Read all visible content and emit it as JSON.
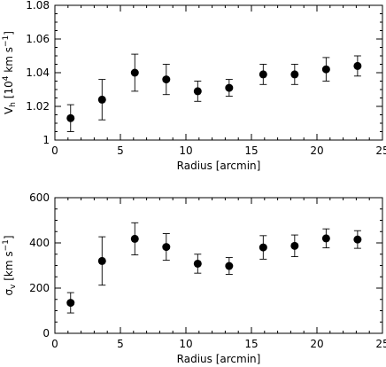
{
  "chart_data": [
    {
      "type": "scatter",
      "xlabel": "Radius [arcmin]",
      "ylabel": "V_h [10^4 km s^-1]",
      "ylabel_parts": {
        "main": "V",
        "sub": "h",
        "bracket_open": "[10",
        "sup": "4",
        "unit_mid": " km s",
        "unit_sup": "−1",
        "bracket_close": "]"
      },
      "xlim": [
        0,
        25
      ],
      "ylim": [
        1.0,
        1.08
      ],
      "x_ticks": [
        0,
        5,
        10,
        15,
        20,
        25
      ],
      "y_ticks": [
        1,
        1.02,
        1.04,
        1.06,
        1.08
      ],
      "x_tick_labels": [
        "0",
        "5",
        "10",
        "15",
        "20",
        "25"
      ],
      "y_tick_labels": [
        "1",
        "1.02",
        "1.04",
        "1.06",
        "1.08"
      ],
      "x_minor_step": 1,
      "y_minor_step": 0.005,
      "points": [
        {
          "x": 1.2,
          "y": 1.013,
          "err_lo": 0.008,
          "err_hi": 0.008
        },
        {
          "x": 3.6,
          "y": 1.024,
          "err_lo": 0.012,
          "err_hi": 0.012
        },
        {
          "x": 6.1,
          "y": 1.04,
          "err_lo": 0.011,
          "err_hi": 0.011
        },
        {
          "x": 8.5,
          "y": 1.036,
          "err_lo": 0.009,
          "err_hi": 0.009
        },
        {
          "x": 10.9,
          "y": 1.029,
          "err_lo": 0.006,
          "err_hi": 0.006
        },
        {
          "x": 13.3,
          "y": 1.031,
          "err_lo": 0.005,
          "err_hi": 0.005
        },
        {
          "x": 15.9,
          "y": 1.039,
          "err_lo": 0.006,
          "err_hi": 0.006
        },
        {
          "x": 18.3,
          "y": 1.039,
          "err_lo": 0.006,
          "err_hi": 0.006
        },
        {
          "x": 20.7,
          "y": 1.042,
          "err_lo": 0.007,
          "err_hi": 0.007
        },
        {
          "x": 23.1,
          "y": 1.044,
          "err_lo": 0.006,
          "err_hi": 0.006
        }
      ]
    },
    {
      "type": "scatter",
      "xlabel": "Radius [arcmin]",
      "ylabel": "σ_v [km s^-1]",
      "ylabel_parts": {
        "main": "σ",
        "sub": "v",
        "bracket_open": "[km s",
        "sup": "−1",
        "bracket_close": "]"
      },
      "xlim": [
        0,
        25
      ],
      "ylim": [
        0,
        600
      ],
      "x_ticks": [
        0,
        5,
        10,
        15,
        20,
        25
      ],
      "y_ticks": [
        0,
        200,
        400,
        600
      ],
      "x_tick_labels": [
        "0",
        "5",
        "10",
        "15",
        "20",
        "25"
      ],
      "y_tick_labels": [
        "0",
        "200",
        "400",
        "600"
      ],
      "x_minor_step": 1,
      "y_minor_step": 50,
      "points": [
        {
          "x": 1.2,
          "y": 135,
          "err_lo": 45,
          "err_hi": 45
        },
        {
          "x": 3.6,
          "y": 320,
          "err_lo": 107,
          "err_hi": 107
        },
        {
          "x": 6.1,
          "y": 418,
          "err_lo": 71,
          "err_hi": 71
        },
        {
          "x": 8.5,
          "y": 382,
          "err_lo": 59,
          "err_hi": 59
        },
        {
          "x": 10.9,
          "y": 308,
          "err_lo": 42,
          "err_hi": 42
        },
        {
          "x": 13.3,
          "y": 298,
          "err_lo": 37,
          "err_hi": 37
        },
        {
          "x": 15.9,
          "y": 380,
          "err_lo": 52,
          "err_hi": 52
        },
        {
          "x": 18.3,
          "y": 387,
          "err_lo": 48,
          "err_hi": 48
        },
        {
          "x": 20.7,
          "y": 420,
          "err_lo": 42,
          "err_hi": 42
        },
        {
          "x": 23.1,
          "y": 415,
          "err_lo": 39,
          "err_hi": 39
        }
      ]
    }
  ]
}
